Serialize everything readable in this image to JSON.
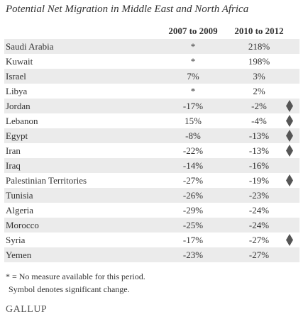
{
  "title": "Potential Net Migration in Middle East and North Africa",
  "table": {
    "columns": [
      "2007 to 2009",
      "2010 to 2012"
    ],
    "rows": [
      {
        "country": "Saudi Arabia",
        "cells": [
          "*",
          "218%"
        ],
        "significant": false
      },
      {
        "country": "Kuwait",
        "cells": [
          "*",
          "198%"
        ],
        "significant": false
      },
      {
        "country": "Israel",
        "cells": [
          "7%",
          "3%"
        ],
        "significant": false
      },
      {
        "country": "Libya",
        "cells": [
          "*",
          "2%"
        ],
        "significant": false
      },
      {
        "country": "Jordan",
        "cells": [
          "-17%",
          "-2%"
        ],
        "significant": true
      },
      {
        "country": "Lebanon",
        "cells": [
          "15%",
          "-4%"
        ],
        "significant": true
      },
      {
        "country": "Egypt",
        "cells": [
          "-8%",
          "-13%"
        ],
        "significant": true
      },
      {
        "country": "Iran",
        "cells": [
          "-22%",
          "-13%"
        ],
        "significant": true
      },
      {
        "country": "Iraq",
        "cells": [
          "-14%",
          "-16%"
        ],
        "significant": false
      },
      {
        "country": "Palestinian Territories",
        "cells": [
          "-27%",
          "-19%"
        ],
        "significant": true
      },
      {
        "country": "Tunisia",
        "cells": [
          "-26%",
          "-23%"
        ],
        "significant": false
      },
      {
        "country": "Algeria",
        "cells": [
          "-29%",
          "-24%"
        ],
        "significant": false
      },
      {
        "country": "Morocco",
        "cells": [
          "-25%",
          "-24%"
        ],
        "significant": false
      },
      {
        "country": "Syria",
        "cells": [
          "-17%",
          "-27%"
        ],
        "significant": true
      },
      {
        "country": "Yemen",
        "cells": [
          "-23%",
          "-27%"
        ],
        "significant": false
      }
    ]
  },
  "footnotes": [
    "* = No measure available for this period.",
    "Symbol denotes significant change."
  ],
  "logo": "GALLUP"
}
